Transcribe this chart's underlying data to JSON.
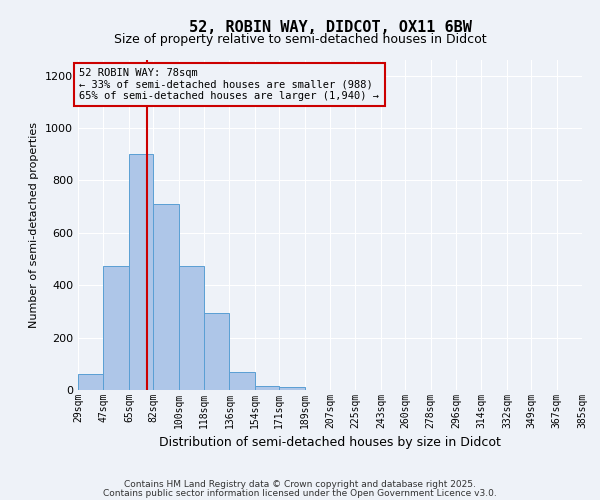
{
  "title": "52, ROBIN WAY, DIDCOT, OX11 6BW",
  "subtitle": "Size of property relative to semi-detached houses in Didcot",
  "xlabel": "Distribution of semi-detached houses by size in Didcot",
  "ylabel": "Number of semi-detached properties",
  "bar_edges": [
    29,
    47,
    65,
    82,
    100,
    118,
    136,
    154,
    171,
    189,
    207,
    225,
    243,
    260,
    278,
    296,
    314,
    332,
    349,
    367,
    385
  ],
  "bar_heights": [
    60,
    475,
    900,
    710,
    475,
    295,
    70,
    15,
    10,
    0,
    0,
    0,
    0,
    0,
    0,
    0,
    0,
    0,
    0,
    0
  ],
  "bar_color": "#aec6e8",
  "bar_edgecolor": "#5a9fd4",
  "property_size": 78,
  "vline_color": "#cc0000",
  "annotation_text": "52 ROBIN WAY: 78sqm\n← 33% of semi-detached houses are smaller (988)\n65% of semi-detached houses are larger (1,940) →",
  "annotation_box_color": "#cc0000",
  "ylim": [
    0,
    1260
  ],
  "yticks": [
    0,
    200,
    400,
    600,
    800,
    1000,
    1200
  ],
  "tick_labels": [
    "29sqm",
    "47sqm",
    "65sqm",
    "82sqm",
    "100sqm",
    "118sqm",
    "136sqm",
    "154sqm",
    "171sqm",
    "189sqm",
    "207sqm",
    "225sqm",
    "243sqm",
    "260sqm",
    "278sqm",
    "296sqm",
    "314sqm",
    "332sqm",
    "349sqm",
    "367sqm",
    "385sqm"
  ],
  "footer1": "Contains HM Land Registry data © Crown copyright and database right 2025.",
  "footer2": "Contains public sector information licensed under the Open Government Licence v3.0.",
  "bg_color": "#eef2f8",
  "grid_color": "#ffffff"
}
